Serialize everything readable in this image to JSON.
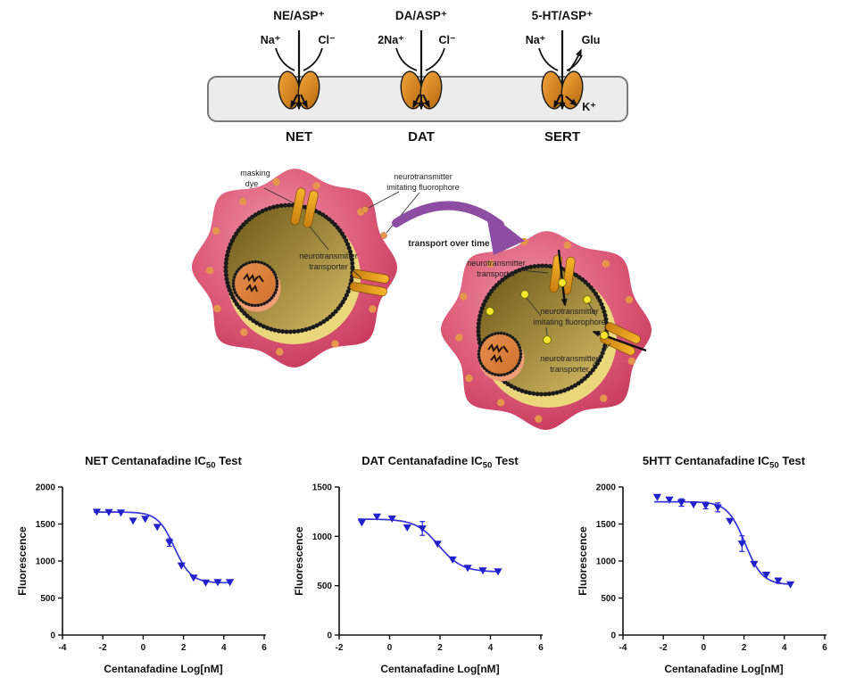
{
  "top_diagram": {
    "transporters": [
      {
        "substrate": "NE/ASP⁺",
        "ion_left": "Na⁺",
        "ion_right": "Cl⁻",
        "name": "NET"
      },
      {
        "substrate": "DA/ASP⁺",
        "ion_left": "2Na⁺",
        "ion_right": "Cl⁻",
        "name": "DAT"
      },
      {
        "substrate": "5-HT/ASP⁺",
        "ion_left": "Na⁺",
        "ion_right": "Glu",
        "name": "SERT",
        "ion_extra": "K⁺"
      }
    ]
  },
  "cell_diagram": {
    "arrow_label": "transport over time",
    "left_cell": {
      "labels": {
        "masking_dye": [
          "masking",
          "dye"
        ],
        "fluorophore": [
          "neurotransmitter",
          "imitating fluorophore"
        ],
        "transporter": [
          "neurotransmitter",
          "transporter"
        ]
      }
    },
    "right_cell": {
      "labels": {
        "transporter_top": [
          "neurotransmitter",
          "transporter"
        ],
        "fluorophore": [
          "neurotransmitter",
          "imitating fluorophore"
        ],
        "transporter_bottom": [
          "neurotransmitter",
          "transporter"
        ]
      }
    }
  },
  "chart_data": [
    {
      "type": "scatter",
      "title_main": "NET Centanafadine IC",
      "title_sub": "50",
      "title_end": " Test",
      "xlabel": "Centanafadine Log[nM]",
      "ylabel": "Fluorescence",
      "xlim": [
        -4,
        6
      ],
      "ylim": [
        0,
        2000
      ],
      "xticks": [
        -4,
        -2,
        0,
        2,
        4,
        6
      ],
      "yticks": [
        0,
        500,
        1000,
        1500,
        2000
      ],
      "x": [
        -2.3,
        -1.7,
        -1.1,
        -0.5,
        0.1,
        0.7,
        1.3,
        1.9,
        2.5,
        3.1,
        3.7,
        4.3
      ],
      "y": [
        1665,
        1660,
        1655,
        1545,
        1570,
        1460,
        1250,
        940,
        775,
        710,
        715,
        715
      ],
      "yerr": [
        0,
        0,
        0,
        0,
        0,
        0,
        50,
        0,
        0,
        0,
        0,
        0
      ],
      "fit": {
        "top": 1662,
        "bottom": 705,
        "logIC50": 1.55,
        "hill": 1.05
      }
    },
    {
      "type": "scatter",
      "title_main": "DAT Centanafadine IC",
      "title_sub": "50",
      "title_end": " Test",
      "xlabel": "Centanafadine Log[nM]",
      "ylabel": "Fluorescence",
      "xlim": [
        -2,
        6
      ],
      "ylim": [
        0,
        1500
      ],
      "xticks": [
        -2,
        0,
        2,
        4,
        6
      ],
      "yticks": [
        0,
        500,
        1000,
        1500
      ],
      "x": [
        -1.1,
        -0.5,
        0.1,
        0.7,
        1.3,
        1.9,
        2.5,
        3.1,
        3.7,
        4.3
      ],
      "y": [
        1140,
        1200,
        1180,
        1090,
        1080,
        925,
        765,
        680,
        655,
        645
      ],
      "yerr": [
        0,
        0,
        0,
        0,
        70,
        0,
        0,
        0,
        0,
        0
      ],
      "fit": {
        "top": 1175,
        "bottom": 640,
        "logIC50": 1.95,
        "hill": 0.95
      }
    },
    {
      "type": "scatter",
      "title_main": "5HTT Centanafadine IC",
      "title_sub": "50",
      "title_end": " Test",
      "xlabel": "Centanafadine Log[nM]",
      "ylabel": "Fluorescence",
      "xlim": [
        -4,
        6
      ],
      "ylim": [
        0,
        2000
      ],
      "xticks": [
        -4,
        -2,
        0,
        2,
        4,
        6
      ],
      "yticks": [
        0,
        500,
        1000,
        1500,
        2000
      ],
      "x": [
        -2.3,
        -1.7,
        -1.1,
        -0.5,
        0.1,
        0.7,
        1.3,
        1.9,
        2.5,
        3.1,
        3.7,
        4.3
      ],
      "y": [
        1865,
        1830,
        1790,
        1765,
        1750,
        1725,
        1540,
        1235,
        960,
        815,
        735,
        685
      ],
      "yerr": [
        0,
        0,
        50,
        0,
        45,
        60,
        0,
        105,
        0,
        0,
        35,
        0
      ],
      "fit": {
        "top": 1800,
        "bottom": 680,
        "logIC50": 2.05,
        "hill": 1.0
      }
    }
  ],
  "colors": {
    "curve_blue": "#3535d8",
    "marker_blue": "#2121cc",
    "membrane_gray": "#ececec",
    "cell_pink_edge": "#c23358",
    "cell_pink_light": "#ef93a7",
    "dot_orange": "#e6954d",
    "vacuole_dark": "#6a5515",
    "vacuole_light": "#d6bd66",
    "vacuole_cream": "#ead77c",
    "nucleus_orange": "#dd8344",
    "nucleus_salmon": "#ef9d74",
    "rod_orange": "#f2a31d",
    "arrow_purple": "#8d4da2",
    "fluorophore_yellow": "#f6e72e"
  }
}
